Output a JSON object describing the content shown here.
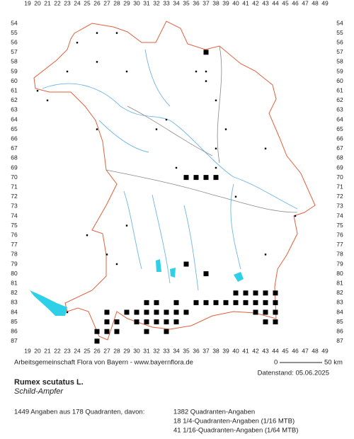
{
  "grid": {
    "columns": [
      19,
      20,
      21,
      22,
      23,
      24,
      25,
      26,
      27,
      28,
      29,
      30,
      31,
      32,
      33,
      34,
      35,
      36,
      37,
      38,
      39,
      40,
      41,
      42,
      43,
      44,
      45,
      46,
      47,
      48,
      49
    ],
    "rows": [
      54,
      55,
      56,
      57,
      58,
      59,
      60,
      61,
      62,
      63,
      64,
      65,
      66,
      67,
      68,
      69,
      70,
      71,
      72,
      73,
      74,
      75,
      76,
      77,
      78,
      79,
      80,
      81,
      82,
      83,
      84,
      85,
      86,
      87
    ]
  },
  "records": {
    "squares": [
      [
        40,
        82
      ],
      [
        41,
        82
      ],
      [
        42,
        82
      ],
      [
        43,
        82
      ],
      [
        44,
        82
      ],
      [
        31,
        83
      ],
      [
        32,
        83
      ],
      [
        34,
        83
      ],
      [
        36,
        83
      ],
      [
        37,
        83
      ],
      [
        38,
        83
      ],
      [
        39,
        83
      ],
      [
        40,
        83
      ],
      [
        41,
        83
      ],
      [
        42,
        83
      ],
      [
        43,
        83
      ],
      [
        44,
        83
      ],
      [
        27,
        84
      ],
      [
        29,
        84
      ],
      [
        30,
        84
      ],
      [
        31,
        84
      ],
      [
        32,
        84
      ],
      [
        33,
        84
      ],
      [
        34,
        84
      ],
      [
        35,
        84
      ],
      [
        42,
        84
      ],
      [
        43,
        84
      ],
      [
        44,
        84
      ],
      [
        27,
        85
      ],
      [
        28,
        85
      ],
      [
        30,
        85
      ],
      [
        31,
        85
      ],
      [
        32,
        85
      ],
      [
        33,
        85
      ],
      [
        34,
        85
      ],
      [
        43,
        85
      ],
      [
        44,
        85
      ],
      [
        26,
        86
      ],
      [
        27,
        86
      ],
      [
        28,
        86
      ],
      [
        31,
        86
      ],
      [
        33,
        86
      ],
      [
        26,
        87
      ],
      [
        35,
        70
      ],
      [
        36,
        70
      ],
      [
        37,
        70
      ],
      [
        38,
        70
      ],
      [
        37,
        80
      ],
      [
        35,
        79
      ],
      [
        37,
        57
      ]
    ],
    "dots": [
      [
        26,
        55
      ],
      [
        28,
        55
      ],
      [
        24,
        56
      ],
      [
        26,
        58
      ],
      [
        23,
        59
      ],
      [
        29,
        59
      ],
      [
        37,
        59
      ],
      [
        37,
        60
      ],
      [
        20,
        61
      ],
      [
        21,
        62
      ],
      [
        36,
        59
      ],
      [
        33,
        64
      ],
      [
        38,
        67
      ],
      [
        39,
        65
      ],
      [
        43,
        67
      ],
      [
        23,
        84
      ],
      [
        46,
        74
      ],
      [
        25,
        76
      ],
      [
        29,
        75
      ],
      [
        38,
        69
      ],
      [
        34,
        69
      ],
      [
        40,
        72
      ],
      [
        43,
        78
      ],
      [
        26,
        65
      ],
      [
        32,
        65
      ],
      [
        38,
        62
      ],
      [
        27,
        78
      ],
      [
        28,
        79
      ]
    ]
  },
  "footer": {
    "source": "Arbeitsgemeinschaft Flora von Bayern - www.bayernflora.de",
    "scale_start": "0",
    "scale_end": "50 km",
    "date": "Datenstand: 05.06.2025",
    "species": "Rumex scutatus L.",
    "common_name": "Schild-Ampfer",
    "summary": "1449 Angaben aus 178 Quadranten, davon:",
    "detail_1": "1382 Quadranten-Angaben",
    "detail_2": "18 1/4-Quadranten-Angaben (1/16 MTB)",
    "detail_3": "41 1/16-Quadranten-Angaben (1/64 MTB)"
  }
}
